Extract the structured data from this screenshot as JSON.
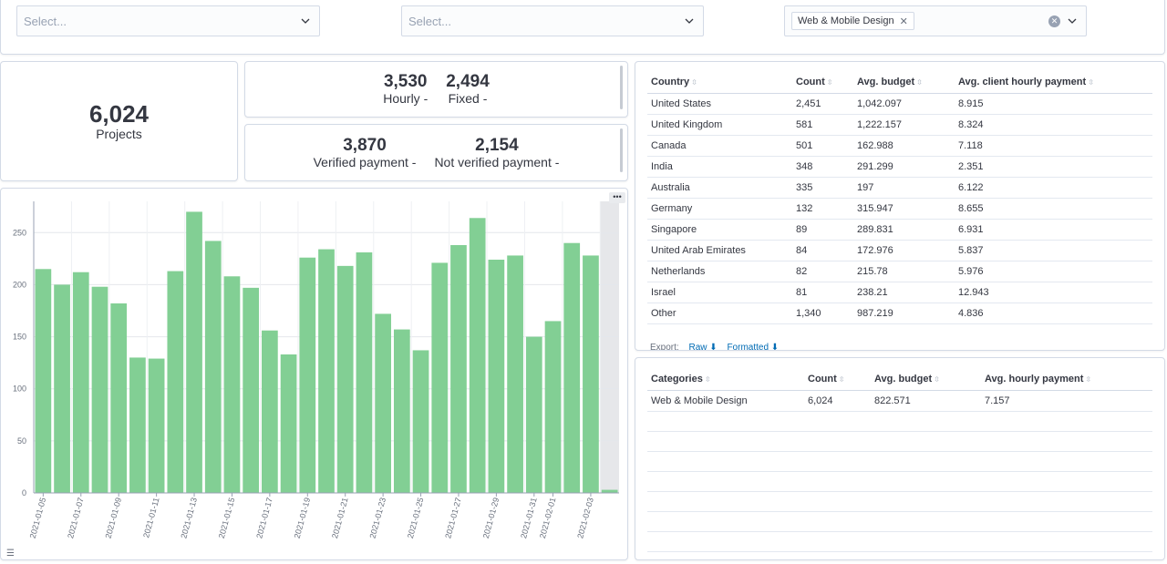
{
  "filters": [
    {
      "placeholder": "Select...",
      "value": ""
    },
    {
      "placeholder": "Select...",
      "value": ""
    },
    {
      "placeholder": "",
      "chips": [
        "Web & Mobile Design"
      ]
    }
  ],
  "metrics": {
    "projects": {
      "value": "6,024",
      "label": "Projects"
    },
    "hourly": {
      "value": "3,530",
      "label": "Hourly -"
    },
    "fixed": {
      "value": "2,494",
      "label": "Fixed -"
    },
    "verified": {
      "value": "3,870",
      "label": "Verified payment -"
    },
    "not_verified": {
      "value": "2,154",
      "label": "Not verified payment -"
    }
  },
  "country_table": {
    "headers": [
      "Country",
      "Count",
      "Avg. budget",
      "Avg. client hourly payment"
    ],
    "rows": [
      [
        "United States",
        "2,451",
        "1,042.097",
        "8.915"
      ],
      [
        "United Kingdom",
        "581",
        "1,222.157",
        "8.324"
      ],
      [
        "Canada",
        "501",
        "162.988",
        "7.118"
      ],
      [
        "India",
        "348",
        "291.299",
        "2.351"
      ],
      [
        "Australia",
        "335",
        "197",
        "6.122"
      ],
      [
        "Germany",
        "132",
        "315.947",
        "8.655"
      ],
      [
        "Singapore",
        "89",
        "289.831",
        "6.931"
      ],
      [
        "United Arab Emirates",
        "84",
        "172.976",
        "5.837"
      ],
      [
        "Netherlands",
        "82",
        "215.78",
        "5.976"
      ],
      [
        "Israel",
        "81",
        "238.21",
        "12.943"
      ],
      [
        "Other",
        "1,340",
        "987.219",
        "4.836"
      ]
    ],
    "export_label": "Export:",
    "export_raw": "Raw",
    "export_formatted": "Formatted"
  },
  "category_table": {
    "headers": [
      "Categories",
      "Count",
      "Avg. budget",
      "Avg. hourly payment"
    ],
    "rows": [
      [
        "Web & Mobile Design",
        "6,024",
        "822.571",
        "7.157"
      ]
    ]
  },
  "colors": {
    "bar": "#82cf94",
    "bar_stroke": "#6cc383",
    "link": "#006bb4"
  },
  "chart_data": {
    "type": "bar",
    "x": [
      "2021-01-05",
      "2021-01-06",
      "2021-01-07",
      "2021-01-08",
      "2021-01-09",
      "2021-01-10",
      "2021-01-11",
      "2021-01-12",
      "2021-01-13",
      "2021-01-14",
      "2021-01-15",
      "2021-01-16",
      "2021-01-17",
      "2021-01-18",
      "2021-01-19",
      "2021-01-20",
      "2021-01-21",
      "2021-01-22",
      "2021-01-23",
      "2021-01-24",
      "2021-01-25",
      "2021-01-26",
      "2021-01-27",
      "2021-01-28",
      "2021-01-29",
      "2021-01-30",
      "2021-01-31",
      "2021-02-01",
      "2021-02-02",
      "2021-02-03",
      "2021-02-04"
    ],
    "values": [
      215,
      200,
      212,
      198,
      182,
      130,
      129,
      213,
      270,
      242,
      208,
      197,
      156,
      133,
      226,
      234,
      218,
      231,
      172,
      157,
      137,
      221,
      238,
      264,
      224,
      228,
      150,
      165,
      240,
      228,
      3
    ],
    "tick_labels": [
      "2021-01-05",
      "2021-01-07",
      "2021-01-09",
      "2021-01-11",
      "2021-01-13",
      "2021-01-15",
      "2021-01-17",
      "2021-01-19",
      "2021-01-21",
      "2021-01-23",
      "2021-01-25",
      "2021-01-27",
      "2021-01-29",
      "2021-01-31",
      "2021-02-01",
      "2021-02-03"
    ],
    "y_ticks": [
      0,
      50,
      100,
      150,
      200,
      250
    ],
    "ylim": [
      0,
      280
    ],
    "grid": true,
    "title": "",
    "xlabel": "",
    "ylabel": ""
  }
}
